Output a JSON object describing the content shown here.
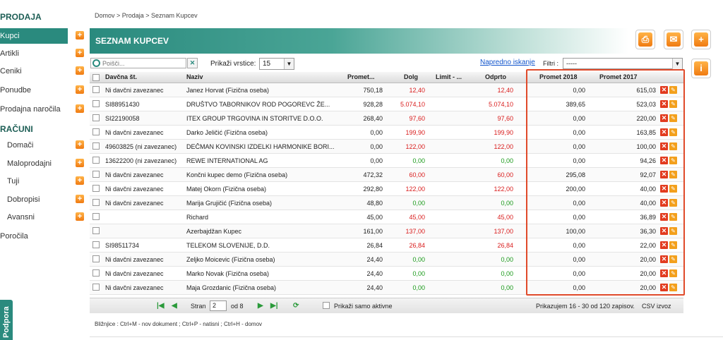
{
  "sidebar": {
    "heading_sales": "PRODAJA",
    "heading_accounts": "RAČUNI",
    "items_sales": [
      {
        "label": "Kupci",
        "active": true
      },
      {
        "label": "Artikli"
      },
      {
        "label": "Ceniki"
      },
      {
        "label": "Ponudbe"
      },
      {
        "label": "Prodajna naročila"
      }
    ],
    "items_accounts": [
      {
        "label": "Domači"
      },
      {
        "label": "Maloprodajni"
      },
      {
        "label": "Tuji"
      },
      {
        "label": "Dobropisi"
      },
      {
        "label": "Avansni"
      }
    ],
    "reports": "Poročila",
    "support_tab": "Podpora"
  },
  "breadcrumb": "Domov  >  Prodaja  >  Seznam Kupcev",
  "page_title": "SEZNAM KUPCEV",
  "toolbar": {
    "print_icon": "print-icon",
    "mail_icon": "mail-icon",
    "add_icon": "add-icon",
    "info_label": "i"
  },
  "search": {
    "placeholder": "Poišči...",
    "clear": "✕"
  },
  "rows_control": {
    "label": "Prikaži vrstice:",
    "value": "15"
  },
  "advanced_search": "Napredno iskanje",
  "filter": {
    "label": "Filtri :",
    "value": "-----"
  },
  "table": {
    "headers": [
      "Davčna št.",
      "Naziv",
      "Promet...",
      "Dolg",
      "Limit - ...",
      "Odprto",
      "Promet 2018",
      "Promet 2017"
    ],
    "rows": [
      [
        "Ni davčni zavezanec",
        "Janez Horvat (Fizična oseba)",
        "750,18",
        "12,40",
        "",
        "12,40",
        "0,00",
        "615,03"
      ],
      [
        "SI88951430",
        "DRUŠTVO TABORNIKOV ROD POGOREVC ŽE...",
        "928,28",
        "5.074,10",
        "",
        "5.074,10",
        "389,65",
        "523,03"
      ],
      [
        "SI22190058",
        "ITEX GROUP TRGOVINA IN STORITVE D.O.O.",
        "268,40",
        "97,60",
        "",
        "97,60",
        "0,00",
        "220,00"
      ],
      [
        "Ni davčni zavezanec",
        "Darko Jeličić (Fizična oseba)",
        "0,00",
        "199,90",
        "",
        "199,90",
        "0,00",
        "163,85"
      ],
      [
        "49603825 (ni zavezanec)",
        "DEČMAN KOVINSKI IZDELKI HARMONIKE BORI...",
        "0,00",
        "122,00",
        "",
        "122,00",
        "0,00",
        "100,00"
      ],
      [
        "13622200 (ni zavezanec)",
        "REWE INTERNATIONAL AG",
        "0,00",
        "0,00",
        "",
        "0,00",
        "0,00",
        "94,26"
      ],
      [
        "Ni davčni zavezanec",
        "Končni kupec demo (Fizična oseba)",
        "472,32",
        "60,00",
        "",
        "60,00",
        "295,08",
        "92,07"
      ],
      [
        "Ni davčni zavezanec",
        "Matej Okorn (Fizična oseba)",
        "292,80",
        "122,00",
        "",
        "122,00",
        "200,00",
        "40,00"
      ],
      [
        "Ni davčni zavezanec",
        "Marija Grujičić (Fizična oseba)",
        "48,80",
        "0,00",
        "",
        "0,00",
        "0,00",
        "40,00"
      ],
      [
        "",
        "Richard",
        "45,00",
        "45,00",
        "",
        "45,00",
        "0,00",
        "36,89"
      ],
      [
        "",
        "Azerbajdžan Kupec",
        "161,00",
        "137,00",
        "",
        "137,00",
        "100,00",
        "36,30"
      ],
      [
        "SI98511734",
        "TELEKOM SLOVENIJE, D.D.",
        "26,84",
        "26,84",
        "",
        "26,84",
        "0,00",
        "22,00"
      ],
      [
        "Ni davčni zavezanec",
        "Zeljko Moicevic (Fizična oseba)",
        "24,40",
        "0,00",
        "",
        "0,00",
        "0,00",
        "20,00"
      ],
      [
        "Ni davčni zavezanec",
        "Marko Novak (Fizična oseba)",
        "24,40",
        "0,00",
        "",
        "0,00",
        "0,00",
        "20,00"
      ],
      [
        "Ni davčni zavezanec",
        "Maja Grozdanic (Fizična oseba)",
        "24,40",
        "0,00",
        "",
        "0,00",
        "0,00",
        "20,00"
      ]
    ],
    "colors": {
      "negative": "#d91c1c",
      "zero": "#1a9a1a",
      "highlight": "#e04a2a"
    }
  },
  "pager": {
    "page_label": "Stran",
    "page_value": "2",
    "of_label": "od 8",
    "only_active": "Prikaži samo aktivne",
    "summary": "Prikazujem 16 - 30 od 120 zapisov.",
    "csv": "CSV izvoz"
  },
  "shortcuts": "Bližnjice : Ctrl+M - nov dokument ;  Ctrl+P - natisni ;  Ctrl+H - domov"
}
